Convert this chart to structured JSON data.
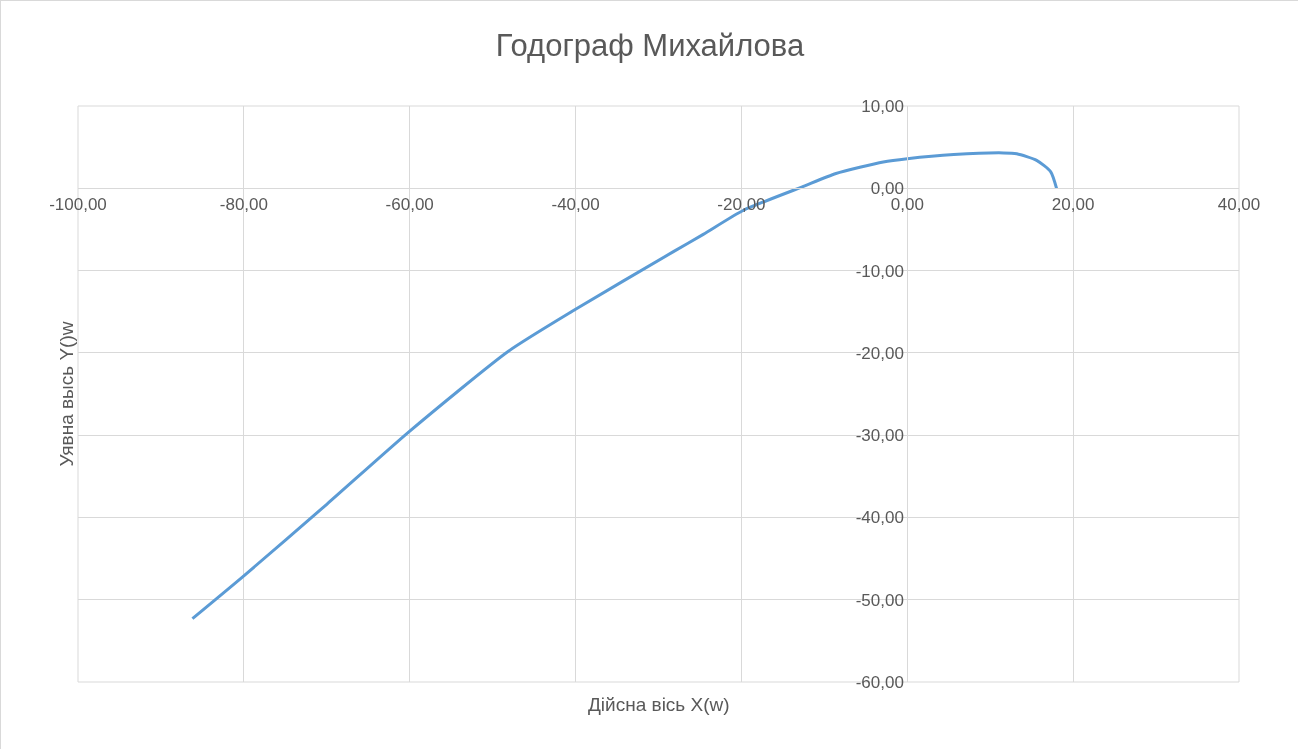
{
  "chart_data": {
    "type": "line",
    "title": "Годограф Михайлова",
    "xlabel": "Дійсна вісь X(w)",
    "ylabel": "Уявна высь Y()w",
    "series": [
      {
        "color": "#5b9bd5",
        "x": [
          -86.2,
          -80.0,
          -70.0,
          -60.1,
          -48.1,
          -40.0,
          -28.2,
          -24.6,
          -19.8,
          -12.6,
          -8.6,
          -2.9,
          0,
          5.6,
          11.6,
          13.2,
          15.6,
          17.3,
          18.0
        ],
        "values": [
          -52.3,
          -47.1,
          -38.4,
          -29.6,
          -19.8,
          -14.7,
          -7.7,
          -5.6,
          -2.7,
          0.2,
          1.8,
          3.2,
          3.6,
          4.1,
          4.3,
          4.2,
          3.4,
          2.0,
          0
        ]
      }
    ],
    "xlim": [
      -100,
      40
    ],
    "xticks": [
      {
        "value": -100,
        "label": "-100,00"
      },
      {
        "value": -80,
        "label": "-80,00"
      },
      {
        "value": -60,
        "label": "-60,00"
      },
      {
        "value": -40,
        "label": "-40,00"
      },
      {
        "value": -20,
        "label": "-20,00"
      },
      {
        "value": 0,
        "label": "0,00"
      },
      {
        "value": 20,
        "label": "20,00"
      },
      {
        "value": 40,
        "label": "40,00"
      }
    ],
    "ylim": [
      -60,
      10
    ],
    "yticks": [
      {
        "value": -60,
        "label": "-60,00"
      },
      {
        "value": -50,
        "label": "-50,00"
      },
      {
        "value": -40,
        "label": "-40,00"
      },
      {
        "value": -30,
        "label": "-30,00"
      },
      {
        "value": -20,
        "label": "-20,00"
      },
      {
        "value": -10,
        "label": "-10,00"
      },
      {
        "value": 0,
        "label": "0,00"
      },
      {
        "value": 10,
        "label": "10,00"
      }
    ],
    "grid": true,
    "legend": false,
    "marker": "none",
    "line_style": "solid"
  }
}
